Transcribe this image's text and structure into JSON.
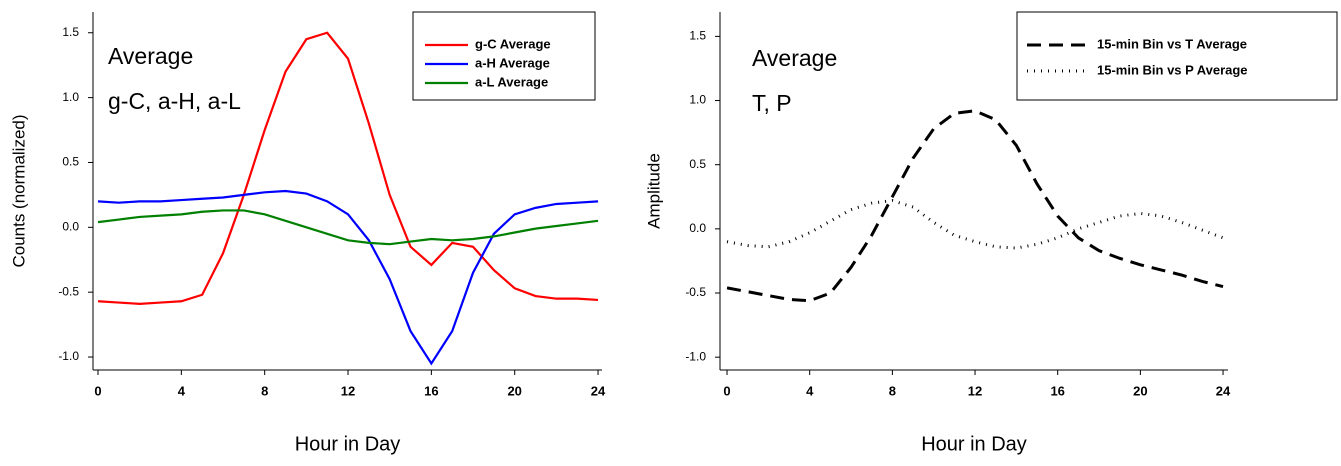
{
  "chart_data": [
    {
      "type": "line",
      "ylabel": "Counts (normalized)",
      "xlabel": "Hour in Day",
      "annotations": [
        "Average",
        "g-C, a-H, a-L"
      ],
      "x": [
        0,
        1,
        2,
        3,
        4,
        5,
        6,
        7,
        8,
        9,
        10,
        11,
        12,
        13,
        14,
        15,
        16,
        17,
        18,
        19,
        20,
        21,
        22,
        23,
        24
      ],
      "xlim": [
        -0.24,
        24.19
      ],
      "xticks": [
        0,
        4,
        8,
        12,
        16,
        20,
        24
      ],
      "ylim": [
        -1.1,
        1.66
      ],
      "yticks": [
        {
          "value": -1,
          "label": "-1.0"
        },
        {
          "value": -0.5,
          "label": "-0.5"
        },
        {
          "value": 0,
          "label": "0.0"
        },
        {
          "value": 0.5,
          "label": "0.5"
        },
        {
          "value": 1,
          "label": "1.0"
        },
        {
          "value": 1.5,
          "label": "1.5"
        }
      ],
      "legend": "upper right",
      "series": [
        {
          "name": "g-C Average",
          "color": "#ff0000",
          "style": "solid",
          "values": [
            -0.57,
            -0.58,
            -0.59,
            -0.58,
            -0.57,
            -0.52,
            -0.2,
            0.25,
            0.75,
            1.2,
            1.45,
            1.5,
            1.3,
            0.8,
            0.25,
            -0.15,
            -0.29,
            -0.12,
            -0.15,
            -0.33,
            -0.47,
            -0.53,
            -0.55,
            -0.55,
            -0.56
          ]
        },
        {
          "name": "a-H Average",
          "color": "#0000ff",
          "style": "solid",
          "values": [
            0.2,
            0.19,
            0.2,
            0.2,
            0.21,
            0.22,
            0.23,
            0.25,
            0.27,
            0.28,
            0.26,
            0.2,
            0.1,
            -0.1,
            -0.4,
            -0.8,
            -1.05,
            -0.8,
            -0.35,
            -0.05,
            0.1,
            0.15,
            0.18,
            0.19,
            0.2
          ]
        },
        {
          "name": "a-L Average",
          "color": "#008000",
          "style": "solid",
          "values": [
            0.04,
            0.06,
            0.08,
            0.09,
            0.1,
            0.12,
            0.13,
            0.13,
            0.1,
            0.05,
            0,
            -0.05,
            -0.1,
            -0.12,
            -0.13,
            -0.11,
            -0.09,
            -0.1,
            -0.09,
            -0.07,
            -0.04,
            -0.01,
            0.01,
            0.03,
            0.05
          ]
        }
      ]
    },
    {
      "type": "line",
      "ylabel": "Amplitude",
      "xlabel": "Hour in Day",
      "annotations": [
        "Average",
        "T, P"
      ],
      "x": [
        0,
        1,
        2,
        3,
        4,
        5,
        6,
        7,
        8,
        9,
        10,
        11,
        12,
        13,
        14,
        15,
        16,
        17,
        18,
        19,
        20,
        21,
        22,
        23,
        24
      ],
      "xlim": [
        -0.34,
        24.24
      ],
      "xticks": [
        0,
        4,
        8,
        12,
        16,
        20,
        24
      ],
      "ylim": [
        -1.1,
        1.69
      ],
      "yticks": [
        {
          "value": -1,
          "label": "-1.0"
        },
        {
          "value": -0.5,
          "label": "-0.5"
        },
        {
          "value": 0,
          "label": "0.0"
        },
        {
          "value": 0.5,
          "label": "0.5"
        },
        {
          "value": 1,
          "label": "1.0"
        },
        {
          "value": 1.5,
          "label": "1.5"
        }
      ],
      "legend": "upper right",
      "series": [
        {
          "name": "15-min Bin vs T Average",
          "color": "#000000",
          "style": "dashed",
          "values": [
            -0.46,
            -0.49,
            -0.52,
            -0.55,
            -0.56,
            -0.5,
            -0.3,
            -0.05,
            0.25,
            0.55,
            0.78,
            0.9,
            0.92,
            0.85,
            0.65,
            0.35,
            0.1,
            -0.07,
            -0.17,
            -0.23,
            -0.28,
            -0.32,
            -0.36,
            -0.41,
            -0.45
          ]
        },
        {
          "name": "15-min Bin vs P Average",
          "color": "#000000",
          "style": "dotted",
          "values": [
            -0.1,
            -0.13,
            -0.14,
            -0.1,
            -0.03,
            0.06,
            0.15,
            0.2,
            0.22,
            0.17,
            0.05,
            -0.05,
            -0.1,
            -0.14,
            -0.15,
            -0.12,
            -0.07,
            0,
            0.05,
            0.1,
            0.12,
            0.1,
            0.05,
            -0.01,
            -0.07
          ]
        }
      ]
    }
  ]
}
